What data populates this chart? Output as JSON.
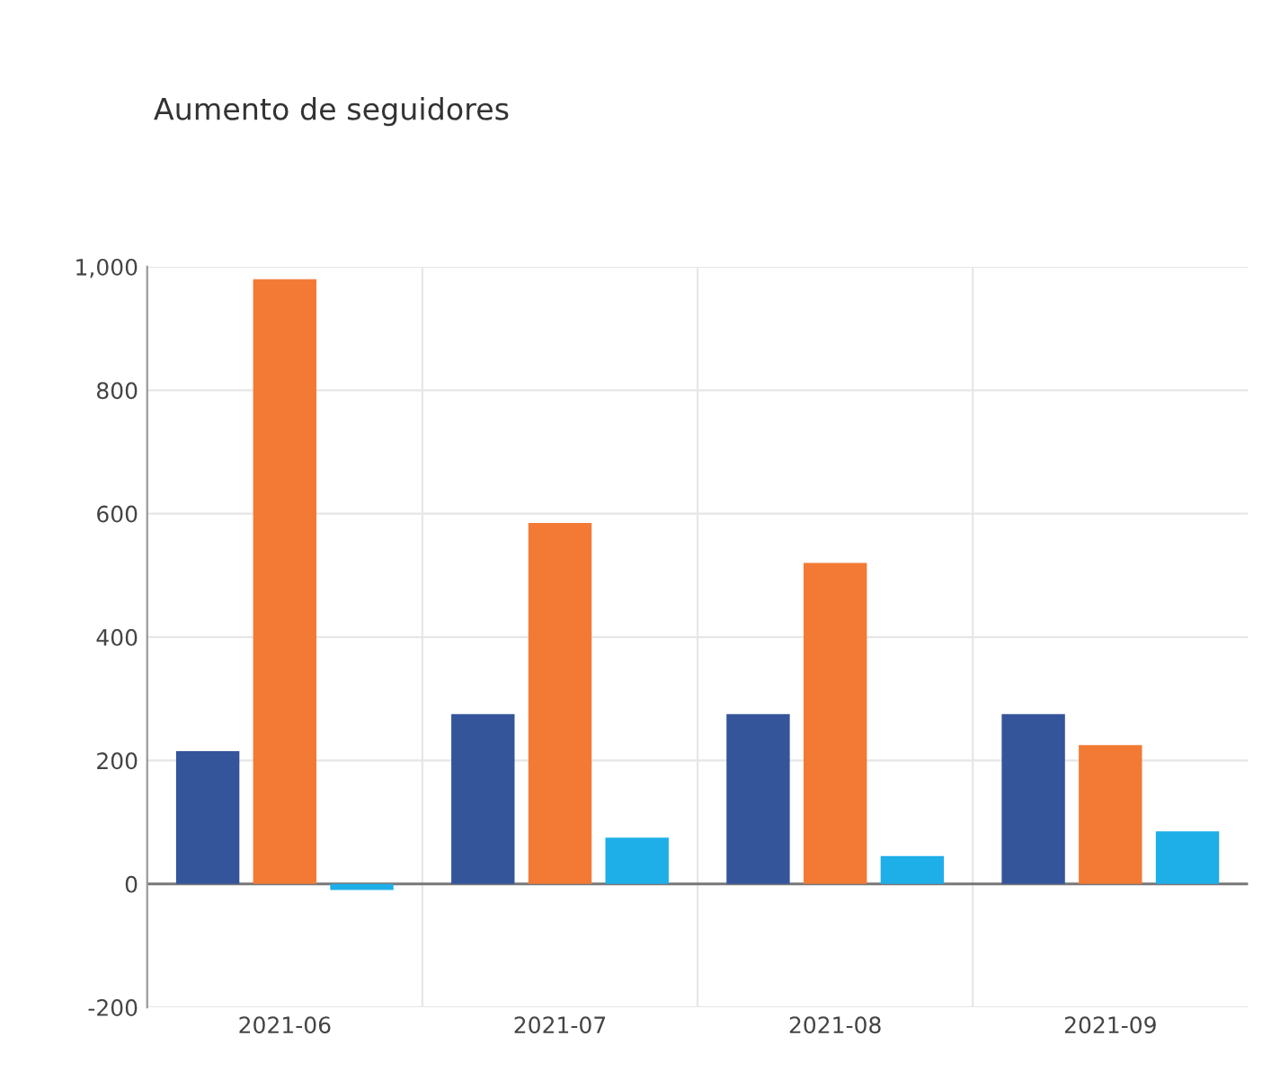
{
  "chart_data": {
    "type": "bar",
    "title": "Aumento de seguidores",
    "categories": [
      "2021-06",
      "2021-07",
      "2021-08",
      "2021-09"
    ],
    "series": [
      {
        "color": "#34559a",
        "values": [
          215,
          275,
          275,
          275
        ]
      },
      {
        "color": "#f27a35",
        "values": [
          980,
          585,
          520,
          225
        ]
      },
      {
        "color": "#1eaee8",
        "values": [
          -10,
          75,
          45,
          85
        ]
      }
    ],
    "ylim": [
      -200,
      1000
    ],
    "yticks": [
      -200,
      0,
      200,
      400,
      600,
      800,
      {
        "value": 1000,
        "label": "1,000"
      }
    ],
    "grid": true,
    "legend": false
  }
}
